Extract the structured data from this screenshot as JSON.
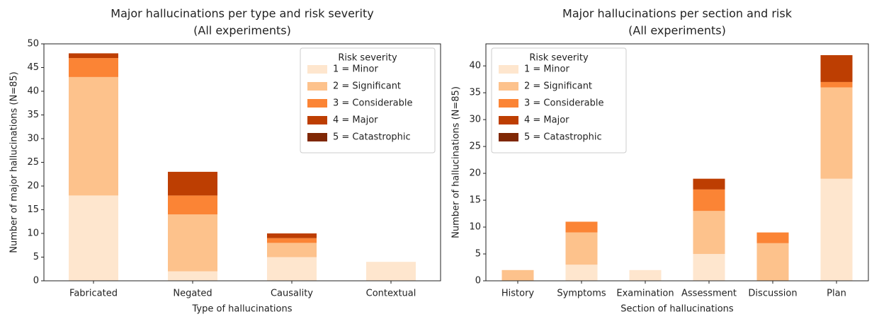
{
  "chart_data": [
    {
      "type": "bar",
      "stacked": true,
      "title": "Major hallucinations per type and risk severity",
      "subtitle": "(All experiments)",
      "x_label": "Type of hallucinations",
      "y_label": "Number of major hallucinations (N=85)",
      "categories": [
        "Fabricated",
        "Negated",
        "Causality",
        "Contextual"
      ],
      "series": [
        {
          "name": "1 = Minor",
          "color": "#fee6ce",
          "values": [
            18,
            2,
            5,
            4
          ]
        },
        {
          "name": "2 = Significant",
          "color": "#fdc28c",
          "values": [
            25,
            12,
            3,
            0
          ]
        },
        {
          "name": "3 = Considerable",
          "color": "#fb8435",
          "values": [
            4,
            4,
            1,
            0
          ]
        },
        {
          "name": "4 = Major",
          "color": "#bd3e02",
          "values": [
            1,
            5,
            1,
            0
          ]
        },
        {
          "name": "5 = Catastrophic",
          "color": "#7f2704",
          "values": [
            0,
            0,
            0,
            0
          ]
        }
      ],
      "ylim": [
        0,
        50
      ],
      "yticks": [
        0,
        5,
        10,
        15,
        20,
        25,
        30,
        35,
        40,
        45,
        50
      ],
      "legend_title": "Risk severity",
      "legend": "upper right"
    },
    {
      "type": "bar",
      "stacked": true,
      "title": "Major hallucinations per section and risk",
      "subtitle": "(All experiments)",
      "x_label": "Section of hallucinations",
      "y_label": "Number of hallucinations (N=85)",
      "categories": [
        "History",
        "Symptoms",
        "Examination",
        "Assessment",
        "Discussion",
        "Plan"
      ],
      "series": [
        {
          "name": "1 = Minor",
          "color": "#fee6ce",
          "values": [
            0,
            3,
            2,
            5,
            0,
            19
          ]
        },
        {
          "name": "2 = Significant",
          "color": "#fdc28c",
          "values": [
            2,
            6,
            0,
            8,
            7,
            17
          ]
        },
        {
          "name": "3 = Considerable",
          "color": "#fb8435",
          "values": [
            0,
            2,
            0,
            4,
            2,
            1
          ]
        },
        {
          "name": "4 = Major",
          "color": "#bd3e02",
          "values": [
            0,
            0,
            0,
            2,
            0,
            5
          ]
        },
        {
          "name": "5 = Catastrophic",
          "color": "#7f2704",
          "values": [
            0,
            0,
            0,
            0,
            0,
            0
          ]
        }
      ],
      "ylim": [
        0,
        44.1
      ],
      "yticks": [
        0,
        5,
        10,
        15,
        20,
        25,
        30,
        35,
        40
      ],
      "legend_title": "Risk severity",
      "legend": "upper left"
    }
  ]
}
